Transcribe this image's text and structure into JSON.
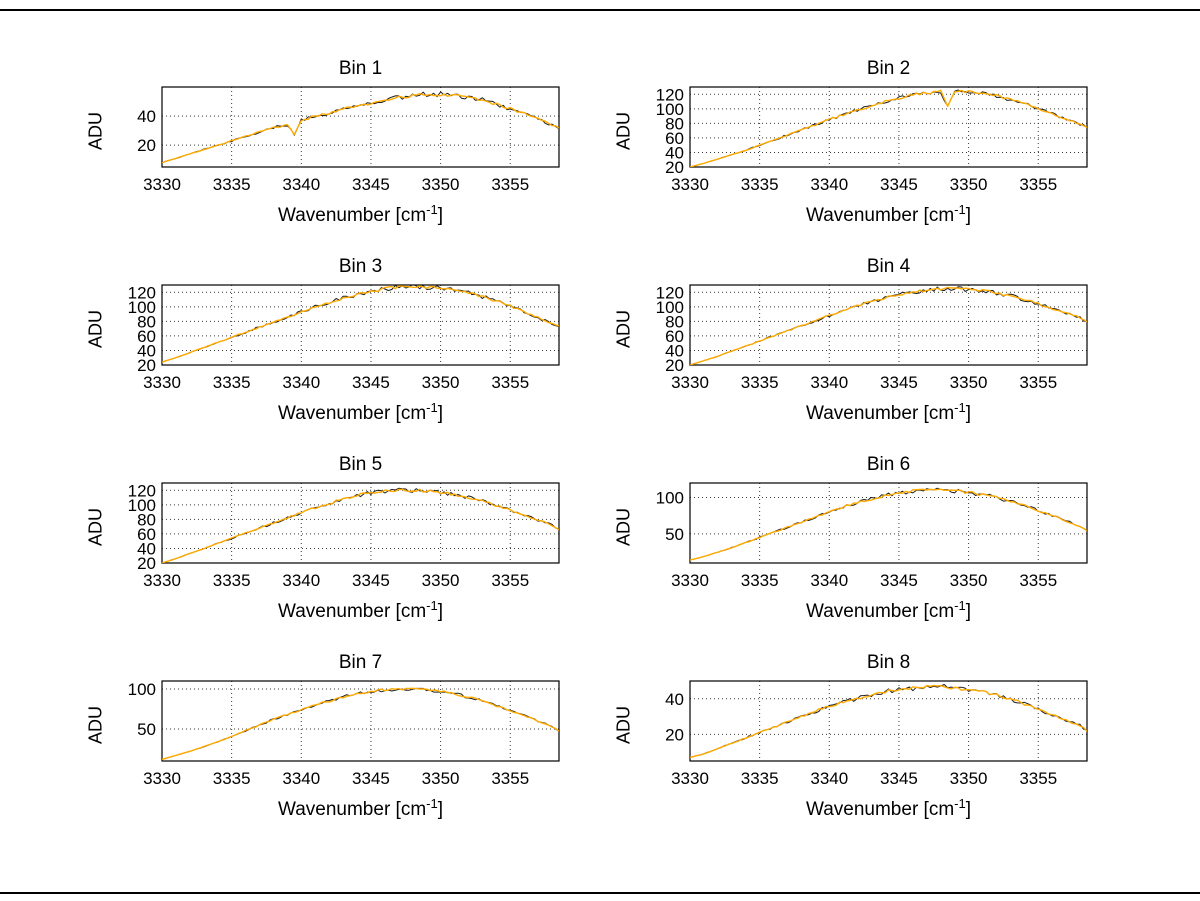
{
  "figure": {
    "background": "#ffffff",
    "border_color": "#000000"
  },
  "labels": {
    "ylabel": "ADU",
    "xlabel_full": "Wavenumber [cm⁻¹]",
    "xlabel_main": "Wavenumber [cm",
    "xlabel_sup": "-1",
    "xlabel_end": "]"
  },
  "style": {
    "line_color": "#ffab00",
    "under_line_color": "#1c1c1c",
    "grid_color": "#3a3a3a",
    "axis_color": "#000000"
  },
  "chart_data": {
    "type": "line",
    "xlabel": "Wavenumber [cm⁻¹]",
    "ylabel": "ADU",
    "xlim": [
      3330,
      3358.5
    ],
    "xticks": [
      3330,
      3335,
      3340,
      3345,
      3350,
      3355
    ],
    "grid": true,
    "legend": "none",
    "x_default": [
      3330,
      3331,
      3332,
      3333,
      3334,
      3335,
      3336,
      3337,
      3338,
      3339,
      3340,
      3341,
      3342,
      3343,
      3344,
      3345,
      3346,
      3347,
      3348,
      3349,
      3350,
      3351,
      3352,
      3353,
      3354,
      3355,
      3356,
      3357,
      3358,
      3358.5
    ],
    "charts": [
      {
        "title": "Bin 1",
        "ylim": [
          5,
          60
        ],
        "yticks": [
          20,
          40
        ],
        "noise": 1.2,
        "x": [
          3330,
          3331,
          3332,
          3333,
          3334,
          3335,
          3336,
          3337,
          3338,
          3339,
          3339.5,
          3340,
          3341,
          3342,
          3343,
          3344,
          3345,
          3346,
          3347,
          3348,
          3349,
          3350,
          3351,
          3352,
          3353,
          3354,
          3355,
          3356,
          3357,
          3358,
          3358.5
        ],
        "y": [
          8,
          11,
          14,
          17,
          20,
          23,
          26,
          29,
          32,
          34,
          27,
          37,
          40,
          42,
          45,
          47,
          49,
          51,
          53,
          54,
          55,
          55,
          54,
          53,
          51,
          48,
          45,
          42,
          38,
          34,
          32
        ]
      },
      {
        "title": "Bin 2",
        "ylim": [
          20,
          130
        ],
        "yticks": [
          20,
          40,
          60,
          80,
          100,
          120
        ],
        "noise": 2,
        "x": [
          3330,
          3331,
          3332,
          3333,
          3334,
          3335,
          3336,
          3337,
          3338,
          3339,
          3340,
          3341,
          3342,
          3343,
          3344,
          3345,
          3346,
          3347,
          3348,
          3348.5,
          3349,
          3350,
          3351,
          3352,
          3353,
          3354,
          3355,
          3356,
          3357,
          3358,
          3358.5
        ],
        "y": [
          20,
          25,
          31,
          37,
          43,
          50,
          57,
          64,
          71,
          78,
          85,
          92,
          98,
          104,
          110,
          115,
          119,
          122,
          124,
          104,
          125,
          124,
          122,
          118,
          113,
          107,
          100,
          93,
          86,
          79,
          75
        ]
      },
      {
        "title": "Bin 3",
        "ylim": [
          20,
          130
        ],
        "yticks": [
          20,
          40,
          60,
          80,
          100,
          120
        ],
        "noise": 2,
        "y": [
          24,
          30,
          37,
          44,
          51,
          58,
          65,
          72,
          79,
          86,
          93,
          100,
          106,
          112,
          117,
          121,
          125,
          127,
          128,
          127,
          126,
          123,
          119,
          114,
          108,
          101,
          93,
          85,
          77,
          73
        ]
      },
      {
        "title": "Bin 4",
        "ylim": [
          20,
          130
        ],
        "yticks": [
          20,
          40,
          60,
          80,
          100,
          120
        ],
        "noise": 2,
        "y": [
          20,
          26,
          32,
          39,
          46,
          53,
          60,
          67,
          74,
          81,
          88,
          95,
          101,
          107,
          112,
          117,
          120,
          123,
          125,
          125,
          124,
          122,
          119,
          115,
          110,
          104,
          98,
          92,
          85,
          79
        ]
      },
      {
        "title": "Bin 5",
        "ylim": [
          20,
          130
        ],
        "yticks": [
          20,
          40,
          60,
          80,
          100,
          120
        ],
        "noise": 2,
        "y": [
          20,
          26,
          33,
          40,
          47,
          54,
          61,
          68,
          75,
          82,
          89,
          96,
          102,
          108,
          113,
          117,
          119,
          120,
          120,
          119,
          117,
          114,
          110,
          105,
          99,
          93,
          86,
          79,
          72,
          66
        ]
      },
      {
        "title": "Bin 6",
        "ylim": [
          10,
          120
        ],
        "yticks": [
          50,
          100
        ],
        "noise": 2,
        "y": [
          14,
          19,
          25,
          31,
          38,
          45,
          52,
          59,
          66,
          73,
          80,
          87,
          93,
          98,
          103,
          106,
          109,
          110,
          110,
          109,
          107,
          104,
          100,
          95,
          89,
          82,
          75,
          68,
          60,
          55
        ]
      },
      {
        "title": "Bin 7",
        "ylim": [
          10,
          110
        ],
        "yticks": [
          50,
          100
        ],
        "noise": 1.5,
        "y": [
          12,
          17,
          22,
          28,
          34,
          41,
          48,
          55,
          62,
          68,
          74,
          80,
          85,
          90,
          94,
          97,
          99,
          100,
          100,
          99,
          97,
          94,
          90,
          85,
          79,
          73,
          67,
          60,
          53,
          48
        ]
      },
      {
        "title": "Bin 8",
        "ylim": [
          5,
          50
        ],
        "yticks": [
          20,
          40
        ],
        "noise": 1,
        "y": [
          7,
          9,
          12,
          15,
          18,
          21,
          24,
          27,
          30,
          33,
          36,
          38,
          40,
          42,
          44,
          45,
          46,
          47,
          47,
          46,
          45,
          44,
          42,
          40,
          37,
          34,
          31,
          28,
          25,
          22
        ]
      }
    ]
  }
}
